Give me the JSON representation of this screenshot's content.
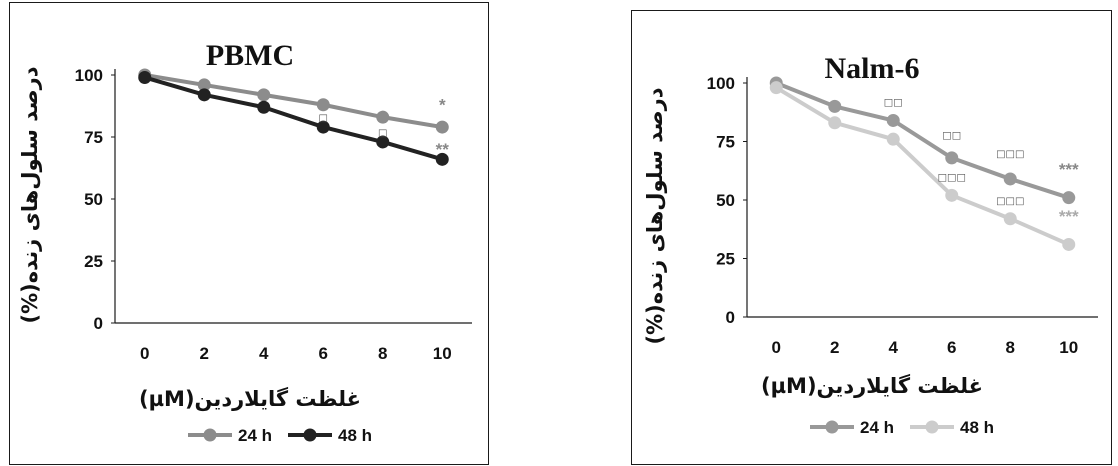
{
  "colors": {
    "series_24h_left": "#8c8c8c",
    "series_48h_left": "#222222",
    "series_24h_right": "#999999",
    "series_48h_right": "#cccccc",
    "axis": "#1a1a1a",
    "annotation_dark": "#888888",
    "annotation_light": "#aaaaaa"
  },
  "chart_data": [
    {
      "type": "line",
      "title": "PBMC",
      "xlabel": "غلظت گایلاردین(µM)",
      "ylabel": "درصد سلول‌های زنده(%)",
      "x": [
        0,
        2,
        4,
        6,
        8,
        10
      ],
      "xtick_labels": [
        "0",
        "2",
        "4",
        "6",
        "8",
        "10"
      ],
      "yticks": [
        0,
        25,
        50,
        75,
        100
      ],
      "ytick_labels": [
        "0",
        "25",
        "50",
        "75",
        "100"
      ],
      "ylim": [
        0,
        100
      ],
      "legend": "bottom",
      "grid": false,
      "series": [
        {
          "name": "24 h",
          "values": [
            100,
            96,
            92,
            88,
            83,
            79
          ],
          "color": "#8c8c8c"
        },
        {
          "name": "48 h",
          "values": [
            99,
            92,
            87,
            79,
            73,
            66
          ],
          "color": "#222222"
        }
      ],
      "annotations": [
        {
          "text": "*",
          "x": 10,
          "y": 89,
          "kind": "star",
          "color": "#888888"
        },
        {
          "text": "**",
          "x": 10,
          "y": 71,
          "kind": "star",
          "color": "#888888"
        },
        {
          "text": "□",
          "x": 6,
          "y": 83,
          "kind": "box",
          "color": "#555555"
        },
        {
          "text": "□",
          "x": 8,
          "y": 77,
          "kind": "box",
          "color": "#555555"
        }
      ]
    },
    {
      "type": "line",
      "title": "Nalm-6",
      "xlabel": "غلظت گایلاردین(µM)",
      "ylabel": "درصد سلول‌های زنده(%)",
      "x": [
        0,
        2,
        4,
        6,
        8,
        10
      ],
      "xtick_labels": [
        "0",
        "2",
        "4",
        "6",
        "8",
        "10"
      ],
      "yticks": [
        0,
        25,
        50,
        75,
        100
      ],
      "ytick_labels": [
        "0",
        "25",
        "50",
        "75",
        "100"
      ],
      "ylim": [
        0,
        100
      ],
      "legend": "bottom",
      "grid": false,
      "series": [
        {
          "name": "24 h",
          "values": [
            100,
            90,
            84,
            68,
            59,
            51
          ],
          "color": "#999999"
        },
        {
          "name": "48 h",
          "values": [
            98,
            83,
            76,
            52,
            42,
            31
          ],
          "color": "#cccccc"
        }
      ],
      "annotations": [
        {
          "text": "□□",
          "x": 4,
          "y": 92,
          "kind": "box",
          "color": "#555555"
        },
        {
          "text": "□□",
          "x": 6,
          "y": 78,
          "kind": "box",
          "color": "#555555"
        },
        {
          "text": "□□□",
          "x": 8,
          "y": 70,
          "kind": "box",
          "color": "#555555"
        },
        {
          "text": "***",
          "x": 10,
          "y": 64,
          "kind": "star",
          "color": "#888888"
        },
        {
          "text": "□□□",
          "x": 6,
          "y": 60,
          "kind": "box",
          "color": "#555555"
        },
        {
          "text": "□□□",
          "x": 8,
          "y": 50,
          "kind": "box",
          "color": "#555555"
        },
        {
          "text": "***",
          "x": 10,
          "y": 44,
          "kind": "star",
          "color": "#aaaaaa"
        }
      ]
    }
  ]
}
